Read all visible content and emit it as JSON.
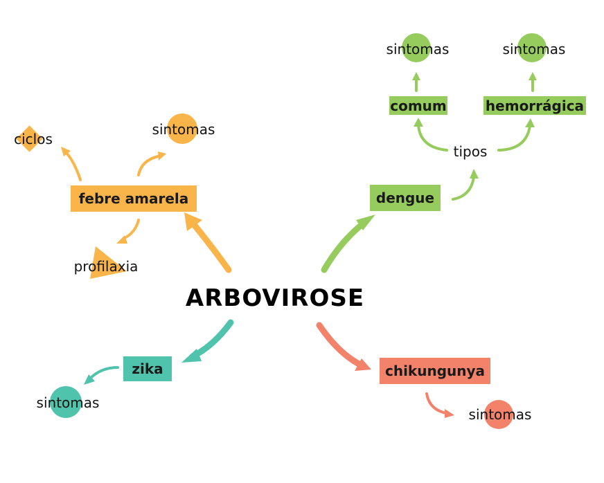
{
  "central": {
    "label": "ARBOVIROSE"
  },
  "colors": {
    "febre": "#f9b54a",
    "dengue": "#96cc5e",
    "zika": "#4fc3ab",
    "chik": "#f2836a"
  },
  "branches": {
    "febre_amarela": {
      "label": "febre amarela",
      "children": {
        "ciclos": "ciclos",
        "sintomas": "sintomas",
        "profilaxia": "profilaxia"
      }
    },
    "dengue": {
      "label": "dengue",
      "tipos": "tipos",
      "comum": "comum",
      "hemorragica": "hemorrágica",
      "comum_sintomas": "sintomas",
      "hemorragica_sintomas": "sintomas"
    },
    "zika": {
      "label": "zika",
      "sintomas": "sintomas"
    },
    "chikungunya": {
      "label": "chikungunya",
      "sintomas": "sintomas"
    }
  }
}
